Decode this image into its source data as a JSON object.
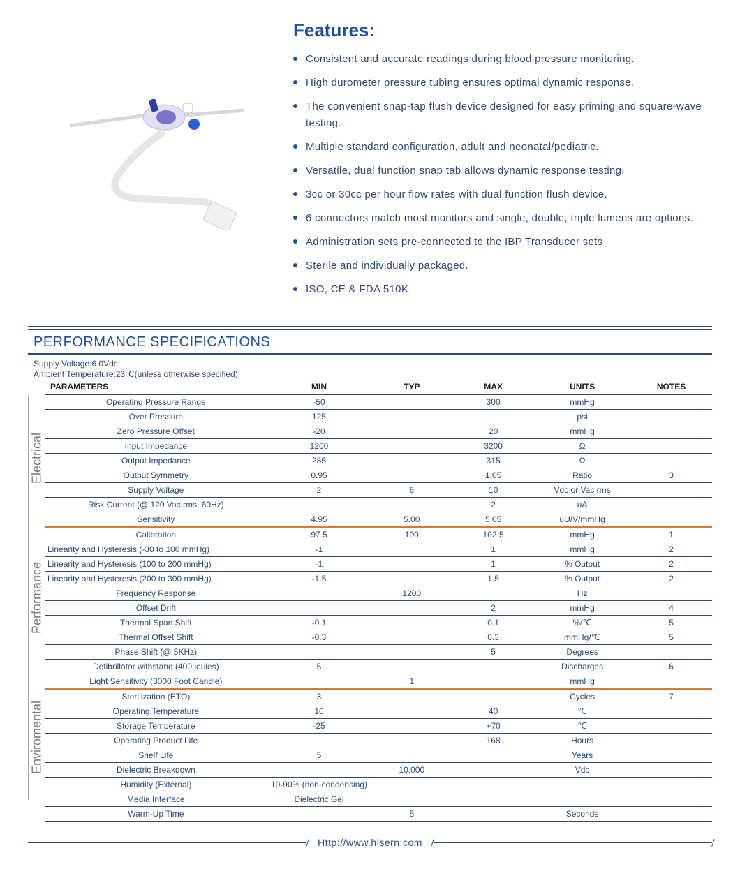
{
  "colors": {
    "brand_blue": "#1e4f9c",
    "text_dark": "#2e4a7a",
    "rule": "#2e4a7a",
    "row_border": "#2e4a7a",
    "section_orange": "#d97b2f",
    "vlabel_gray": "#8a8a8a"
  },
  "features": {
    "title": "Features:",
    "items": [
      "Consistent and accurate readings during blood pressure monitoring.",
      "High durometer pressure tubing ensures optimal dynamic response.",
      "The convenient snap-tap flush device designed for easy priming and square-wave testing.",
      "Multiple standard configuration, adult and neonatal/pediatric.",
      "Versatile, dual function snap tab allows dynamic response testing.",
      "3cc or 30cc per hour flow rates with dual function flush device.",
      "6 connectors match most monitors and single, double, triple lumens are options.",
      "Administration sets pre-connected to the IBP Transducer sets",
      "Sterile and individually packaged.",
      "ISO, CE & FDA 510K."
    ]
  },
  "spec": {
    "title": "PERFORMANCE SPECIFICATIONS",
    "conditions": [
      "Supply Voltage:6.0Vdc",
      "Ambient Temperature:23℃(unless otherwise specified)"
    ],
    "headers": {
      "param": "PARAMETERS",
      "min": "MIN",
      "typ": "TYP",
      "max": "MAX",
      "units": "UNITS",
      "notes": "NOTES"
    },
    "sections": [
      {
        "label": "Electrical",
        "rows": [
          {
            "param": "Operating Pressure Range",
            "min": "-50",
            "typ": "",
            "max": "300",
            "units": "mmHg",
            "notes": "",
            "align": "center"
          },
          {
            "param": "Over  Pressure",
            "min": "125",
            "typ": "",
            "max": "",
            "units": "psi",
            "notes": "",
            "align": "center"
          },
          {
            "param": "Zero Pressure Offset",
            "min": "-20",
            "typ": "",
            "max": "20",
            "units": "mmHg",
            "notes": "",
            "align": "center"
          },
          {
            "param": "Input Impedance",
            "min": "1200",
            "typ": "",
            "max": "3200",
            "units": "Ω",
            "notes": "",
            "align": "center"
          },
          {
            "param": "Output Impedance",
            "min": "285",
            "typ": "",
            "max": "315",
            "units": "Ω",
            "notes": "",
            "align": "center"
          },
          {
            "param": "Output Symmetry",
            "min": "0.95",
            "typ": "",
            "max": "1.05",
            "units": "Ratio",
            "notes": "3",
            "align": "center"
          },
          {
            "param": "Supply Voltage",
            "min": "2",
            "typ": "6",
            "max": "10",
            "units": "Vdc or Vac rms",
            "notes": "",
            "align": "center"
          },
          {
            "param": "Risk Current (@ 120 Vac rms, 60Hz)",
            "min": "",
            "typ": "",
            "max": "2",
            "units": "uA",
            "notes": "",
            "align": "center"
          },
          {
            "param": "Sensitivity",
            "min": "4.95",
            "typ": "5.00",
            "max": "5.05",
            "units": "uU/V/mmHg",
            "notes": "",
            "align": "center"
          }
        ]
      },
      {
        "label": "Performance",
        "rows": [
          {
            "param": "Calibration",
            "min": "97.5",
            "typ": "100",
            "max": "102.5",
            "units": "mmHg",
            "notes": "1",
            "align": "center"
          },
          {
            "param": "Linearity and Hysteresis (-30 to 100 mmHg)",
            "min": "-1",
            "typ": "",
            "max": "1",
            "units": "mmHg",
            "notes": "2",
            "align": "left"
          },
          {
            "param": "Linearity and Hysteresis (100 to 200 mmHg)",
            "min": "-1",
            "typ": "",
            "max": "1",
            "units": "% Output",
            "notes": "2",
            "align": "left"
          },
          {
            "param": "Linearity and Hysteresis (200 to 300 mmHg)",
            "min": "-1.5",
            "typ": "",
            "max": "1.5",
            "units": "% Output",
            "notes": "2",
            "align": "left"
          },
          {
            "param": "Frequency Response",
            "min": "",
            "typ": "1200",
            "max": "",
            "units": "Hz",
            "notes": "",
            "align": "center"
          },
          {
            "param": "Offset Drift",
            "min": "",
            "typ": "",
            "max": "2",
            "units": "mmHg",
            "notes": "4",
            "align": "center"
          },
          {
            "param": "Thermal Span Shift",
            "min": "-0.1",
            "typ": "",
            "max": "0.1",
            "units": "%/℃",
            "notes": "5",
            "align": "center"
          },
          {
            "param": "Thermal Offset Shift",
            "min": "-0.3",
            "typ": "",
            "max": "0.3",
            "units": "mmHg/℃",
            "notes": "5",
            "align": "center"
          },
          {
            "param": "Phase Shift (@ 5KHz)",
            "min": "",
            "typ": "",
            "max": "5",
            "units": "Degrees",
            "notes": "",
            "align": "center"
          },
          {
            "param": "Defibrillator withstand (400 joules)",
            "min": "5",
            "typ": "",
            "max": "",
            "units": "Discharges",
            "notes": "6",
            "align": "center"
          },
          {
            "param": "Light Sensitivity (3000 Foot Candle)",
            "min": "",
            "typ": "1",
            "max": "",
            "units": "mmHg",
            "notes": "",
            "align": "center"
          }
        ]
      },
      {
        "label": "Enviromental",
        "rows": [
          {
            "param": "Sterilization (ETO)",
            "min": "3",
            "typ": "",
            "max": "",
            "units": "Cycles",
            "notes": "7",
            "align": "center"
          },
          {
            "param": "Operating Temperature",
            "min": "10",
            "typ": "",
            "max": "40",
            "units": "℃",
            "notes": "",
            "align": "center"
          },
          {
            "param": "Storage Temperature",
            "min": "-25",
            "typ": "",
            "max": "+70",
            "units": "℃",
            "notes": "",
            "align": "center"
          },
          {
            "param": "Operating Product Life",
            "min": "",
            "typ": "",
            "max": "168",
            "units": "Hours",
            "notes": "",
            "align": "center"
          },
          {
            "param": "Shelf Life",
            "min": "5",
            "typ": "",
            "max": "",
            "units": "Years",
            "notes": "",
            "align": "center"
          },
          {
            "param": "Dielectric Breakdown",
            "min": "",
            "typ": "10,000",
            "max": "",
            "units": "Vdc",
            "notes": "",
            "align": "center"
          },
          {
            "param": "Humidity (External)",
            "min": "10-90% (non-condensing)",
            "typ": "",
            "max": "",
            "units": "",
            "notes": "",
            "align": "center"
          },
          {
            "param": "Media Interface",
            "min": "Dielectric Gel",
            "typ": "",
            "max": "",
            "units": "",
            "notes": "",
            "align": "center"
          },
          {
            "param": "Warm-Up Time",
            "min": "",
            "typ": "5",
            "max": "",
            "units": "Seconds",
            "notes": "",
            "align": "center"
          }
        ]
      }
    ]
  },
  "footer": {
    "url": "Http://www.hisern.com"
  }
}
